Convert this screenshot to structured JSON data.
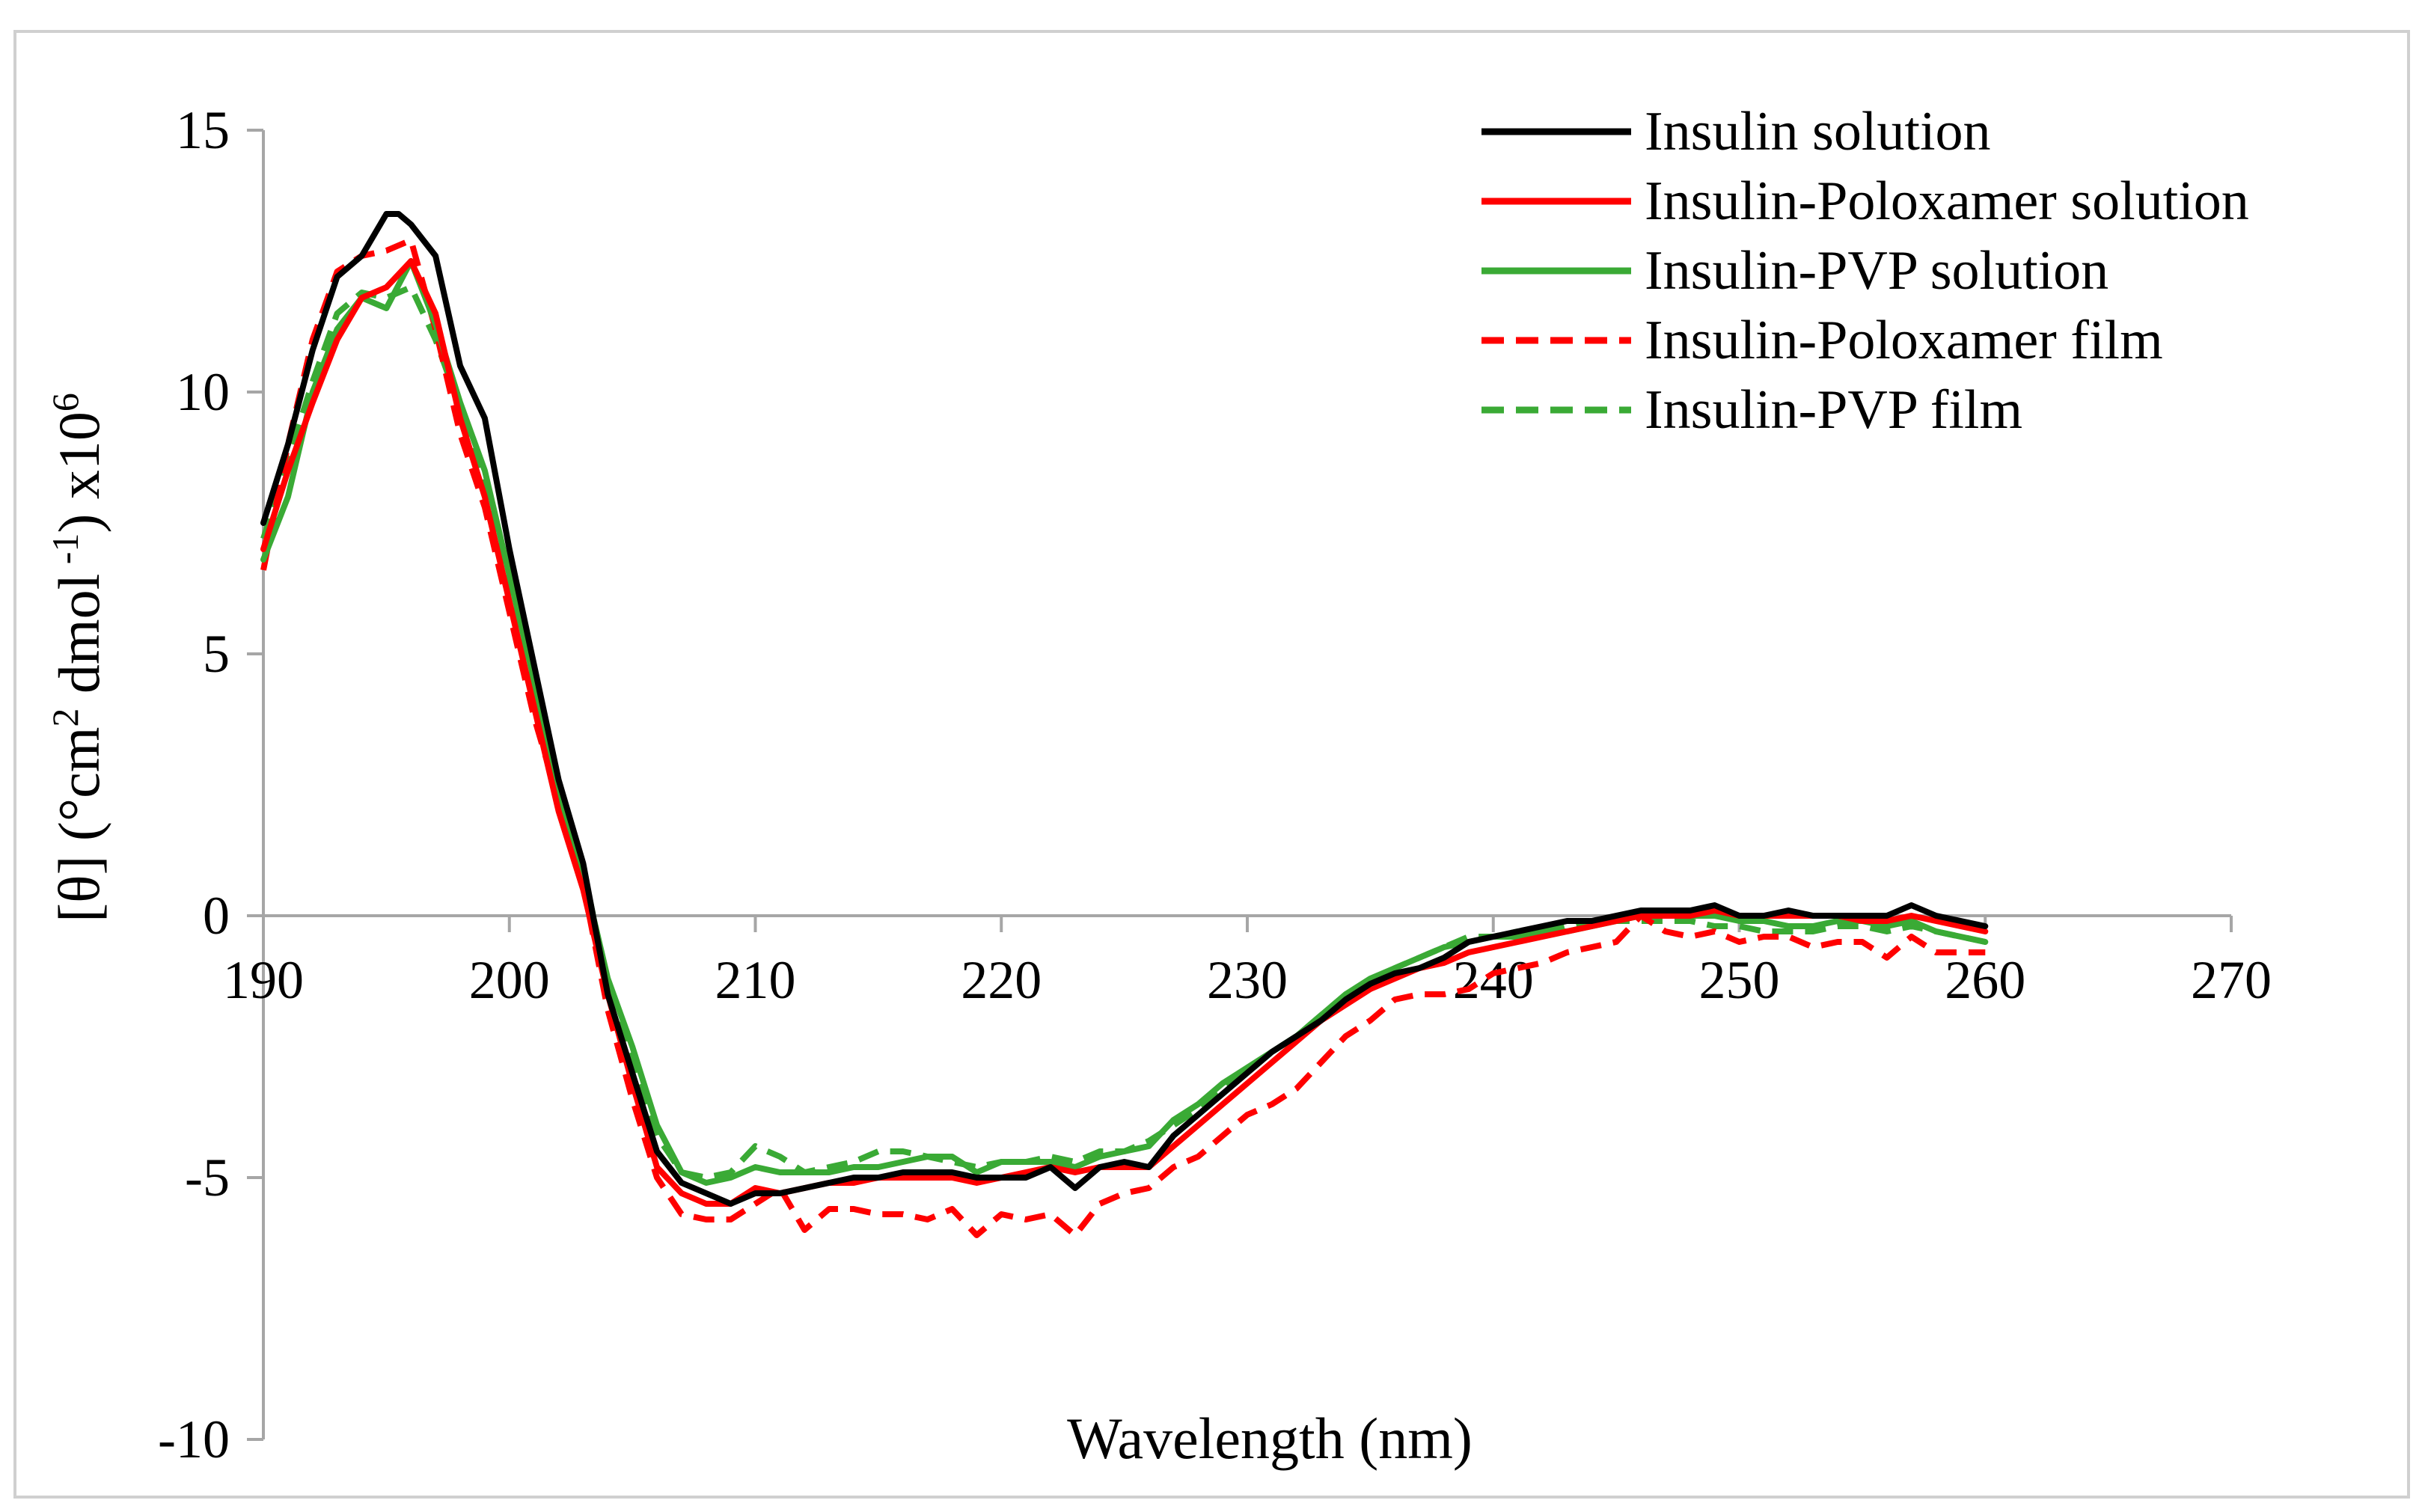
{
  "chart_data": {
    "type": "line",
    "title": "",
    "xlabel": "Wavelength (nm)",
    "ylabel": "[θ] (°cm² dmol⁻¹) x10⁶",
    "ylabel_parts": {
      "prefix": "[θ] (°cm",
      "sup1": "2",
      "mid": " dmol",
      "sup2": " -1",
      "suffix": ") x10",
      "sup3": "6"
    },
    "xlim": [
      190,
      270
    ],
    "ylim": [
      -10,
      15
    ],
    "xticks": [
      190,
      200,
      210,
      220,
      230,
      240,
      250,
      260,
      270
    ],
    "yticks": [
      15,
      10,
      5,
      0,
      -5,
      -10
    ],
    "xtick_labels": [
      "190",
      "200",
      "210",
      "220",
      "230",
      "240",
      "250",
      "260",
      "270"
    ],
    "ytick_labels": [
      "15",
      "10",
      "5",
      "0",
      "-5",
      "-10"
    ],
    "grid": false,
    "legend_position": "top-right",
    "series": [
      {
        "name": "Insulin solution",
        "color": "#000000",
        "dash": "solid",
        "x": [
          190,
          191,
          192,
          193,
          194,
          195,
          195.5,
          196,
          197,
          198,
          199,
          200,
          201,
          202,
          203,
          204,
          205,
          206,
          207,
          208,
          209,
          210,
          211,
          212,
          213,
          214,
          215,
          216,
          217,
          218,
          219,
          220,
          221,
          222,
          223,
          224,
          225,
          226,
          227,
          228,
          229,
          230,
          231,
          232,
          233,
          234,
          235,
          236,
          237,
          238,
          239,
          240,
          241,
          242,
          243,
          244,
          245,
          246,
          247,
          248,
          249,
          250,
          251,
          252,
          253,
          254,
          255,
          256,
          257,
          258,
          259,
          260
        ],
        "y": [
          7.5,
          9.0,
          10.8,
          12.2,
          12.6,
          13.4,
          13.4,
          13.2,
          12.6,
          10.5,
          9.5,
          7.0,
          4.8,
          2.6,
          1.0,
          -1.5,
          -3.0,
          -4.5,
          -5.1,
          -5.3,
          -5.5,
          -5.3,
          -5.3,
          -5.2,
          -5.1,
          -5.0,
          -5.0,
          -4.9,
          -4.9,
          -4.9,
          -5.0,
          -5.0,
          -5.0,
          -4.8,
          -5.2,
          -4.8,
          -4.7,
          -4.8,
          -4.2,
          -3.8,
          -3.4,
          -3.0,
          -2.6,
          -2.3,
          -2.0,
          -1.6,
          -1.3,
          -1.1,
          -1.0,
          -0.8,
          -0.5,
          -0.4,
          -0.3,
          -0.2,
          -0.1,
          -0.1,
          0.0,
          0.1,
          0.1,
          0.1,
          0.2,
          0.0,
          0.0,
          0.1,
          0.0,
          0.0,
          0.0,
          0.0,
          0.2,
          0.0,
          -0.1,
          -0.2
        ]
      },
      {
        "name": "Insulin-Poloxamer solution",
        "color": "#ff0000",
        "dash": "solid",
        "x": [
          190,
          191,
          192,
          193,
          194,
          195,
          196,
          197,
          198,
          199,
          200,
          201,
          202,
          203,
          204,
          205,
          206,
          207,
          208,
          209,
          210,
          211,
          212,
          213,
          214,
          215,
          216,
          217,
          218,
          219,
          220,
          221,
          222,
          223,
          224,
          225,
          226,
          227,
          228,
          229,
          230,
          231,
          232,
          233,
          234,
          235,
          236,
          237,
          238,
          239,
          240,
          241,
          242,
          243,
          244,
          245,
          246,
          247,
          248,
          249,
          250,
          251,
          252,
          253,
          254,
          255,
          256,
          257,
          258,
          259,
          260
        ],
        "y": [
          7.0,
          8.5,
          9.8,
          11.0,
          11.8,
          12.0,
          12.5,
          11.5,
          9.5,
          8.0,
          6.0,
          4.0,
          2.0,
          0.5,
          -1.5,
          -3.2,
          -4.8,
          -5.3,
          -5.5,
          -5.5,
          -5.2,
          -5.3,
          -5.2,
          -5.1,
          -5.1,
          -5.0,
          -5.0,
          -5.0,
          -5.0,
          -5.1,
          -5.0,
          -4.9,
          -4.8,
          -4.9,
          -4.8,
          -4.8,
          -4.8,
          -4.4,
          -4.0,
          -3.6,
          -3.2,
          -2.8,
          -2.4,
          -2.0,
          -1.7,
          -1.4,
          -1.2,
          -1.0,
          -0.9,
          -0.7,
          -0.6,
          -0.5,
          -0.4,
          -0.3,
          -0.2,
          -0.1,
          0.0,
          0.0,
          0.0,
          0.1,
          0.0,
          0.0,
          0.0,
          0.0,
          0.0,
          -0.1,
          -0.1,
          0.0,
          -0.1,
          -0.2,
          -0.3
        ]
      },
      {
        "name": "Insulin-PVP solution",
        "color": "#3aaa35",
        "dash": "solid",
        "x": [
          190,
          191,
          192,
          193,
          194,
          195,
          196,
          197,
          198,
          199,
          200,
          201,
          202,
          203,
          204,
          205,
          206,
          207,
          208,
          209,
          210,
          211,
          212,
          213,
          214,
          215,
          216,
          217,
          218,
          219,
          220,
          221,
          222,
          223,
          224,
          225,
          226,
          227,
          228,
          229,
          230,
          231,
          232,
          233,
          234,
          235,
          236,
          237,
          238,
          239,
          240,
          241,
          242,
          243,
          244,
          245,
          246,
          247,
          248,
          249,
          250,
          251,
          252,
          253,
          254,
          255,
          256,
          257,
          258,
          259,
          260
        ],
        "y": [
          6.8,
          8.0,
          10.0,
          11.2,
          11.8,
          11.6,
          12.5,
          11.3,
          9.8,
          8.5,
          6.5,
          4.5,
          2.3,
          0.8,
          -1.2,
          -2.5,
          -4.0,
          -4.9,
          -5.1,
          -5.0,
          -4.8,
          -4.9,
          -4.9,
          -4.9,
          -4.8,
          -4.8,
          -4.7,
          -4.6,
          -4.6,
          -4.9,
          -4.7,
          -4.7,
          -4.7,
          -4.8,
          -4.6,
          -4.5,
          -4.4,
          -3.9,
          -3.6,
          -3.2,
          -2.9,
          -2.6,
          -2.3,
          -1.9,
          -1.5,
          -1.2,
          -1.0,
          -0.8,
          -0.6,
          -0.5,
          -0.4,
          -0.4,
          -0.3,
          -0.3,
          -0.2,
          -0.1,
          0.0,
          0.0,
          0.0,
          0.0,
          -0.1,
          -0.1,
          -0.2,
          -0.2,
          -0.1,
          -0.1,
          -0.2,
          -0.1,
          -0.3,
          -0.4,
          -0.5
        ]
      },
      {
        "name": "Insulin-Poloxamer film",
        "color": "#ff0000",
        "dash": "dashed",
        "x": [
          190,
          191,
          192,
          193,
          194,
          195,
          196,
          197,
          198,
          199,
          200,
          201,
          202,
          203,
          204,
          205,
          206,
          207,
          208,
          209,
          210,
          211,
          212,
          213,
          214,
          215,
          216,
          217,
          218,
          219,
          220,
          221,
          222,
          223,
          224,
          225,
          226,
          227,
          228,
          229,
          230,
          231,
          232,
          233,
          234,
          235,
          236,
          237,
          238,
          239,
          240,
          241,
          242,
          243,
          244,
          245,
          246,
          247,
          248,
          249,
          250,
          251,
          252,
          253,
          254,
          255,
          256,
          257,
          258,
          259,
          260
        ],
        "y": [
          6.6,
          9.0,
          11.0,
          12.3,
          12.6,
          12.7,
          12.9,
          11.2,
          9.2,
          7.8,
          5.8,
          3.8,
          2.2,
          0.6,
          -1.8,
          -3.5,
          -5.0,
          -5.7,
          -5.8,
          -5.8,
          -5.5,
          -5.2,
          -6.0,
          -5.6,
          -5.6,
          -5.7,
          -5.7,
          -5.8,
          -5.6,
          -6.1,
          -5.7,
          -5.8,
          -5.7,
          -6.1,
          -5.5,
          -5.3,
          -5.2,
          -4.8,
          -4.6,
          -4.2,
          -3.8,
          -3.6,
          -3.3,
          -2.8,
          -2.3,
          -2.0,
          -1.6,
          -1.5,
          -1.5,
          -1.4,
          -1.1,
          -1.0,
          -0.9,
          -0.7,
          -0.6,
          -0.5,
          0.0,
          -0.3,
          -0.4,
          -0.3,
          -0.5,
          -0.4,
          -0.4,
          -0.6,
          -0.5,
          -0.5,
          -0.8,
          -0.4,
          -0.7,
          -0.7,
          -0.7
        ]
      },
      {
        "name": "Insulin-PVP film",
        "color": "#3aaa35",
        "dash": "dashed",
        "x": [
          190,
          191,
          192,
          193,
          194,
          195,
          196,
          197,
          198,
          199,
          200,
          201,
          202,
          203,
          204,
          205,
          206,
          207,
          208,
          209,
          210,
          211,
          212,
          213,
          214,
          215,
          216,
          217,
          218,
          219,
          220,
          221,
          222,
          223,
          224,
          225,
          226,
          227,
          228,
          229,
          230,
          231,
          232,
          233,
          234,
          235,
          236,
          237,
          238,
          239,
          240,
          241,
          242,
          243,
          244,
          245,
          246,
          247,
          248,
          249,
          250,
          251,
          252,
          253,
          254,
          255,
          256,
          257,
          258,
          259,
          260
        ],
        "y": [
          7.2,
          8.7,
          10.2,
          11.5,
          11.9,
          11.8,
          12.0,
          11.0,
          9.7,
          8.3,
          6.3,
          4.4,
          2.4,
          0.9,
          -1.3,
          -2.8,
          -4.2,
          -4.9,
          -5.0,
          -4.9,
          -4.4,
          -4.6,
          -4.9,
          -4.8,
          -4.7,
          -4.5,
          -4.5,
          -4.6,
          -4.7,
          -4.8,
          -4.7,
          -4.7,
          -4.6,
          -4.7,
          -4.5,
          -4.5,
          -4.3,
          -4.0,
          -3.7,
          -3.3,
          -3.0,
          -2.6,
          -2.3,
          -1.9,
          -1.5,
          -1.3,
          -1.0,
          -0.8,
          -0.6,
          -0.4,
          -0.4,
          -0.3,
          -0.3,
          -0.2,
          -0.1,
          -0.1,
          -0.1,
          -0.1,
          -0.1,
          -0.2,
          -0.2,
          -0.3,
          -0.3,
          -0.3,
          -0.2,
          -0.2,
          -0.3,
          -0.2,
          -0.3,
          -0.4,
          -0.5
        ]
      }
    ]
  }
}
